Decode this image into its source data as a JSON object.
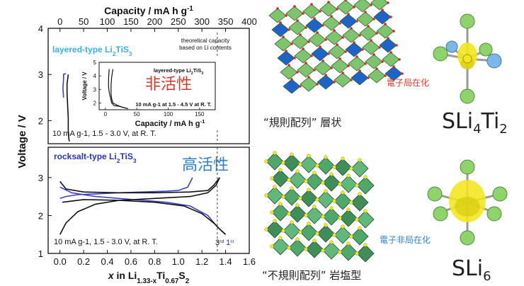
{
  "chart_data": {
    "type": "line",
    "top_axis": {
      "label": "Capacity   /   mA h g",
      "label_sup": "-1",
      "ticks": [
        "0",
        "50",
        "100",
        "150",
        "200",
        "250",
        "300",
        "350",
        "400"
      ],
      "lim": [
        0,
        400
      ]
    },
    "bottom_axis": {
      "label_pre": "x",
      "label_mid": " in Li",
      "label_sub1": "1.33-x",
      "label_ti": "Ti",
      "label_sub2": "0.67",
      "label_s": "S",
      "label_sub3": "2",
      "ticks": [
        "0.0",
        "0.2",
        "0.4",
        "0.6",
        "0.8",
        "1.0",
        "1.2",
        "1.4",
        "1.6"
      ],
      "lim": [
        -0.1,
        1.6
      ]
    },
    "ylabel": "Voltage   /   V",
    "upper_panel": {
      "ticks": [
        "4",
        "3",
        "2"
      ],
      "ylim": [
        1.5,
        4.0
      ],
      "title": "layered-type Li",
      "title_sub": "2",
      "title_end": "TiS",
      "title_sub2": "3",
      "condition": "10 mA g-1, 1.5 - 3.0 V, at R. T.",
      "series": [
        {
          "color": "#3a3fcf",
          "points": [
            [
              0.03,
              2.5
            ],
            [
              0.025,
              2.7
            ],
            [
              0.03,
              2.9
            ],
            [
              0.03,
              3.0
            ],
            [
              0.05,
              3.02
            ]
          ]
        },
        {
          "color": "#111111",
          "points": [
            [
              0.07,
              3.0
            ],
            [
              0.06,
              2.8
            ],
            [
              0.06,
              2.6
            ],
            [
              0.065,
              2.3
            ],
            [
              0.07,
              2.05
            ],
            [
              0.07,
              1.75
            ],
            [
              0.075,
              1.6
            ],
            [
              0.08,
              1.55
            ]
          ]
        }
      ],
      "inset": {
        "title": "layered-type Li",
        "title_sub": "2",
        "title_end": "TiS",
        "title_sub2": "3",
        "ylabel": "Voltage   /   V",
        "yticks": [
          "5",
          "4",
          "3",
          "2"
        ],
        "xticks": [
          "0",
          "50",
          "100",
          "150"
        ],
        "ylim": [
          1.5,
          5.0
        ],
        "xlim": [
          -10,
          175
        ],
        "condition": "10 mA g-1 at 1.5 - 4.5 V at R. T.",
        "series": [
          {
            "points": [
              [
                6,
                4.5
              ],
              [
                5,
                3.8
              ],
              [
                5,
                3.2
              ],
              [
                6,
                2.8
              ],
              [
                8,
                2.4
              ],
              [
                10,
                2.0
              ],
              [
                14,
                1.8
              ],
              [
                22,
                1.75
              ],
              [
                30,
                1.65
              ],
              [
                34,
                1.6
              ]
            ]
          },
          {
            "points": [
              [
                12,
                4.5
              ],
              [
                10,
                3.9
              ],
              [
                9,
                3.3
              ],
              [
                9,
                2.7
              ],
              [
                10,
                2.3
              ],
              [
                12,
                2.0
              ],
              [
                18,
                1.85
              ],
              [
                26,
                1.7
              ],
              [
                32,
                1.62
              ],
              [
                36,
                1.58
              ]
            ]
          }
        ]
      },
      "annotations": {
        "theoretical": "theoretical capacity",
        "theoretical2": "based on Li contents",
        "inactive": "非活性"
      }
    },
    "lower_panel": {
      "ticks": [
        "3",
        "2",
        "1"
      ],
      "ylim": [
        1.0,
        3.8
      ],
      "title": "rocksalt-type Li",
      "title_sub": "2",
      "title_end": "TiS",
      "title_sub2": "3",
      "condition": "10 mA g-1, 1.5 - 3.0 V, at R. T.",
      "cycle3": "3",
      "cycle3_sup": "rd",
      "cycle1": "1",
      "cycle1_sup": "st",
      "active": "高活性",
      "series": [
        {
          "name": "",
          "color": "#3a3fcf",
          "points": [
            [
              0.0,
              2.45
            ],
            [
              0.05,
              2.5
            ],
            [
              0.15,
              2.55
            ],
            [
              0.3,
              2.57
            ],
            [
              0.5,
              2.6
            ],
            [
              0.7,
              2.62
            ],
            [
              0.9,
              2.64
            ],
            [
              1.0,
              2.66
            ],
            [
              1.08,
              2.75
            ],
            [
              1.12,
              3.0
            ]
          ]
        },
        {
          "name": "",
          "color": "#3a3fcf",
          "points": [
            [
              0.0,
              2.75
            ],
            [
              0.1,
              2.6
            ],
            [
              0.3,
              2.5
            ],
            [
              0.5,
              2.45
            ],
            [
              0.7,
              2.4
            ],
            [
              0.9,
              2.35
            ],
            [
              1.1,
              2.25
            ],
            [
              1.25,
              2.0
            ],
            [
              1.33,
              1.7
            ],
            [
              1.4,
              1.5
            ]
          ]
        },
        {
          "name": "",
          "color": "#111111",
          "points": [
            [
              0.0,
              2.9
            ],
            [
              0.05,
              2.7
            ],
            [
              0.2,
              2.62
            ],
            [
              0.5,
              2.6
            ],
            [
              0.8,
              2.6
            ],
            [
              1.1,
              2.62
            ],
            [
              1.25,
              2.66
            ],
            [
              1.3,
              2.8
            ],
            [
              1.35,
              3.0
            ]
          ]
        },
        {
          "name": "",
          "color": "#111111",
          "points": [
            [
              0.0,
              1.5
            ],
            [
              0.05,
              1.8
            ],
            [
              0.15,
              2.1
            ],
            [
              0.3,
              2.3
            ],
            [
              0.5,
              2.4
            ],
            [
              0.8,
              2.45
            ],
            [
              1.1,
              2.5
            ],
            [
              1.25,
              2.6
            ],
            [
              1.32,
              2.8
            ],
            [
              1.35,
              3.0
            ]
          ]
        },
        {
          "name": "",
          "color": "#111111",
          "points": [
            [
              0.02,
              2.35
            ],
            [
              0.2,
              2.42
            ],
            [
              0.5,
              2.4
            ],
            [
              0.8,
              2.35
            ],
            [
              1.05,
              2.25
            ],
            [
              1.2,
              2.05
            ],
            [
              1.3,
              1.8
            ],
            [
              1.37,
              1.58
            ],
            [
              1.4,
              1.5
            ]
          ]
        }
      ]
    }
  },
  "illustrations": {
    "layered_caption": "“規則配列” 層状",
    "rocksalt_caption": "“不規則配列” 岩塩型",
    "localized": "電子局在化",
    "delocalized": "電子非局在化",
    "formula1_a": "SLi",
    "formula1_sub1": "4",
    "formula1_b": "Ti",
    "formula1_sub2": "2",
    "formula2_a": "SLi",
    "formula2_sub": "6",
    "colors": {
      "tio6": "#1e63c8",
      "lis6": "#7ec46e",
      "edge": "#2a5e2a",
      "s_atom": "#f2e61c",
      "li_atom": "#8fd46a",
      "ti_atom": "#7cb8e6",
      "o_red": "#d8281e"
    }
  }
}
